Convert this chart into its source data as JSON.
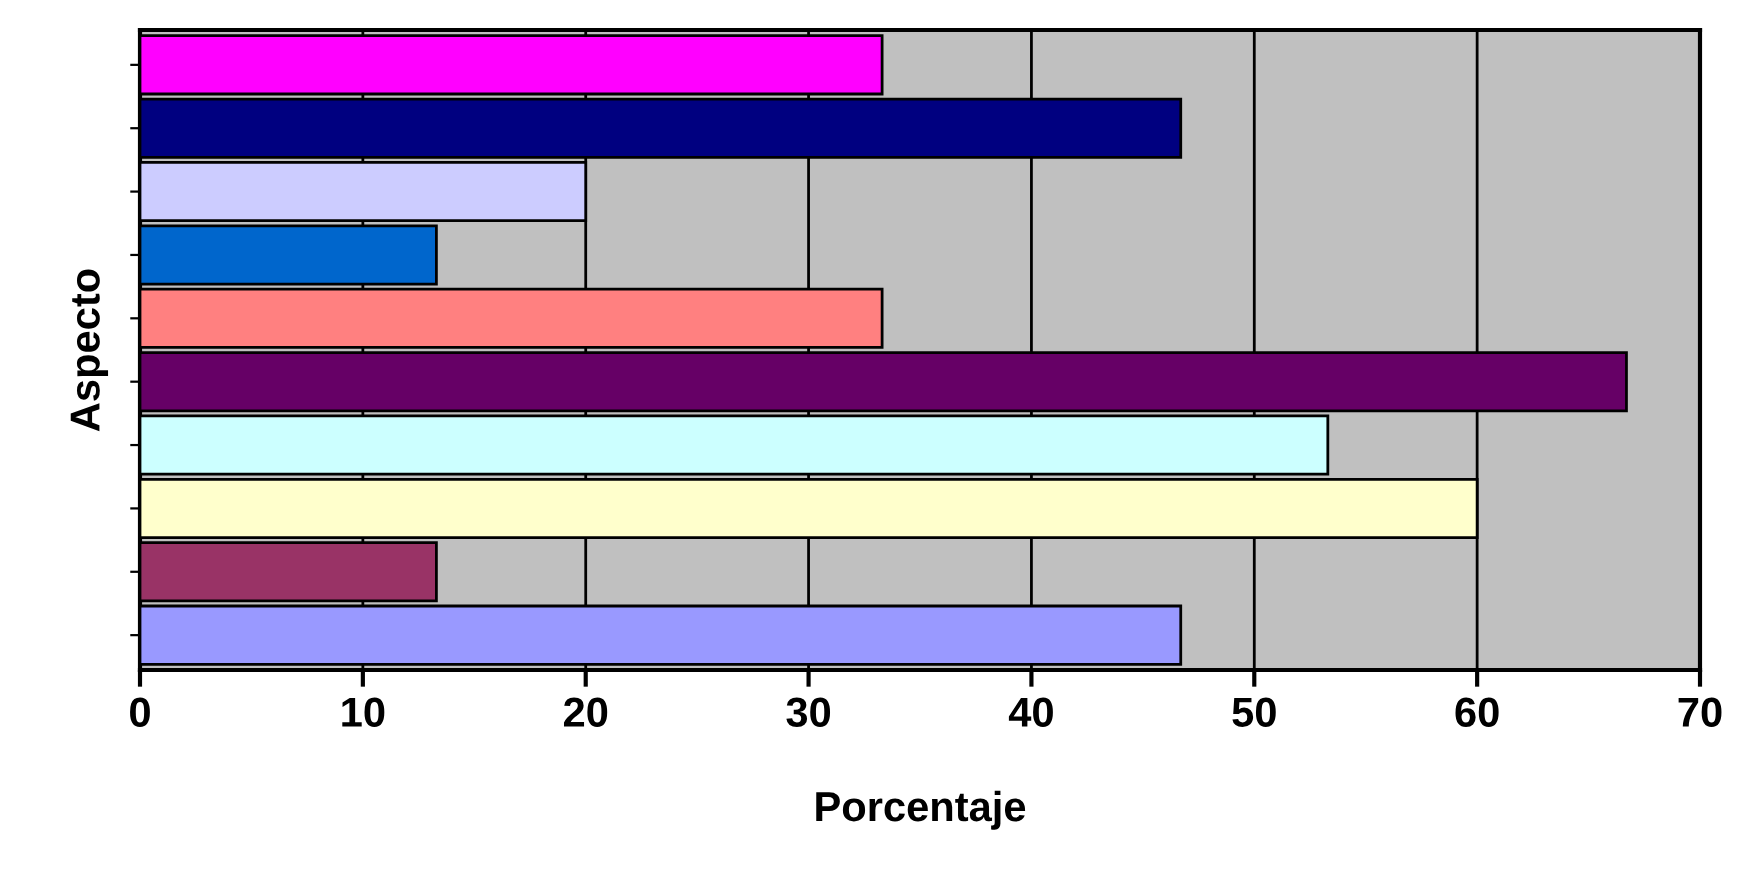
{
  "chart_data": {
    "type": "bar",
    "orientation": "horizontal",
    "xlabel": "Porcentaje",
    "ylabel": "Aspecto",
    "categories": [
      null,
      null,
      null,
      null,
      null,
      null,
      null,
      null,
      null,
      null
    ],
    "values": [
      33.3,
      46.7,
      20,
      13.3,
      33.3,
      66.7,
      53.3,
      60,
      13.3,
      46.7
    ],
    "colors": [
      "#ff00ff",
      "#000080",
      "#ccccff",
      "#0066cc",
      "#ff8080",
      "#660066",
      "#ccffff",
      "#ffffcc",
      "#993366",
      "#9999ff"
    ],
    "xlim": [
      0,
      70
    ],
    "xticks": [
      0,
      10,
      20,
      30,
      40,
      50,
      60,
      70
    ],
    "grid": "x",
    "tick_labels": "x"
  }
}
